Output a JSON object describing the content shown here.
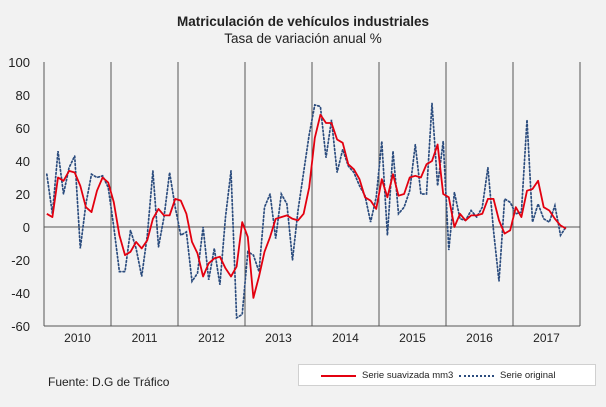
{
  "header": {
    "title": "Matriculación de vehículos industriales",
    "subtitle": "Tasa de variación anual %"
  },
  "footer": {
    "source": "Fuente: D.G de Tráfico"
  },
  "colors": {
    "smoothed": "#e3000f",
    "original": "#2b4c7e",
    "background": "#f2f2f2"
  },
  "chart_data": {
    "type": "line",
    "title": "Matriculación de vehículos industriales",
    "subtitle": "Tasa de variación anual %",
    "xlabel": "",
    "ylabel": "",
    "ylim": [
      -60,
      100
    ],
    "yticks": [
      -60,
      -40,
      -20,
      0,
      20,
      40,
      60,
      80,
      100
    ],
    "x_range_months": [
      1,
      96
    ],
    "year_labels": [
      "2010",
      "2011",
      "2012",
      "2013",
      "2014",
      "2015",
      "2016",
      "2017"
    ],
    "grid": false,
    "legend_position": "bottom-right",
    "series": [
      {
        "name": "Serie suavizada mm3",
        "style": "solid",
        "values": [
          8,
          6,
          30,
          28,
          34,
          33,
          25,
          12,
          9,
          22,
          30,
          27,
          15,
          -5,
          -17,
          -15,
          -9,
          -13,
          -8,
          5,
          11,
          7,
          7,
          17,
          16,
          8,
          -9,
          -16,
          -30,
          -22,
          -19,
          -18,
          -25,
          -30,
          -24,
          3,
          -6,
          -43,
          -30,
          -15,
          -6,
          5,
          6,
          7,
          5,
          4,
          8,
          24,
          54,
          68,
          63,
          63,
          53,
          51,
          38,
          35,
          29,
          18,
          16,
          11,
          29,
          18,
          32,
          19,
          20,
          30,
          31,
          30,
          38,
          40,
          50,
          20,
          18,
          0,
          8,
          4,
          7,
          7,
          8,
          17,
          17,
          4,
          -4,
          -2,
          12,
          6,
          22,
          23,
          28,
          12,
          10,
          5,
          1,
          -1
        ]
      },
      {
        "name": "Serie original",
        "style": "dotted",
        "values": [
          32,
          8,
          46,
          20,
          36,
          43,
          -13,
          14,
          32,
          30,
          31,
          24,
          0,
          -27,
          -27,
          -2,
          -13,
          -30,
          -5,
          34,
          -12,
          6,
          33,
          12,
          -5,
          -3,
          -33,
          -28,
          0,
          -32,
          -13,
          -35,
          6,
          34,
          -55,
          -53,
          -15,
          -17,
          -27,
          12,
          20,
          -7,
          20,
          14,
          -20,
          10,
          33,
          56,
          74,
          73,
          42,
          65,
          33,
          47,
          37,
          33,
          25,
          19,
          3,
          18,
          52,
          -5,
          46,
          8,
          12,
          22,
          50,
          20,
          20,
          75,
          25,
          52,
          -14,
          21,
          5,
          4,
          10,
          6,
          12,
          36,
          -2,
          -33,
          17,
          15,
          8,
          9,
          65,
          3,
          14,
          5,
          3,
          13,
          -5,
          0
        ]
      }
    ]
  }
}
